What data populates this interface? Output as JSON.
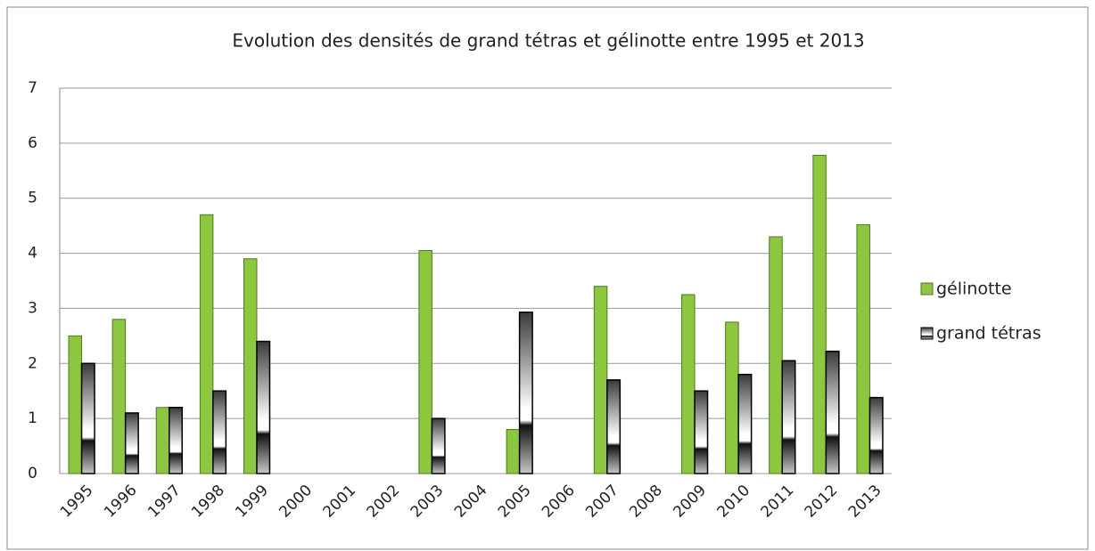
{
  "chart_data": {
    "type": "bar",
    "title": "Evolution des densités de grand tétras et gélinotte entre 1995 et 2013",
    "categories": [
      "1995",
      "1996",
      "1997",
      "1998",
      "1999",
      "2000",
      "2001",
      "2002",
      "2003",
      "2004",
      "2005",
      "2006",
      "2007",
      "2008",
      "2009",
      "2010",
      "2011",
      "2012",
      "2013"
    ],
    "series": [
      {
        "name": "gélinotte",
        "color": "#8dc63f",
        "values": [
          2.5,
          2.8,
          1.2,
          4.7,
          3.9,
          null,
          null,
          null,
          4.05,
          null,
          0.8,
          null,
          3.4,
          null,
          3.25,
          2.75,
          4.3,
          5.78,
          4.52
        ]
      },
      {
        "name": "grand tétras",
        "color": "#3a3a3a",
        "values": [
          2.0,
          1.1,
          1.2,
          1.5,
          2.4,
          null,
          null,
          null,
          1.0,
          null,
          2.93,
          null,
          1.7,
          null,
          1.5,
          1.8,
          2.05,
          2.22,
          1.38
        ]
      }
    ],
    "ylim": [
      0,
      7
    ],
    "yticks": [
      0,
      1,
      2,
      3,
      4,
      5,
      6,
      7
    ],
    "grid": true,
    "legend": "right"
  }
}
